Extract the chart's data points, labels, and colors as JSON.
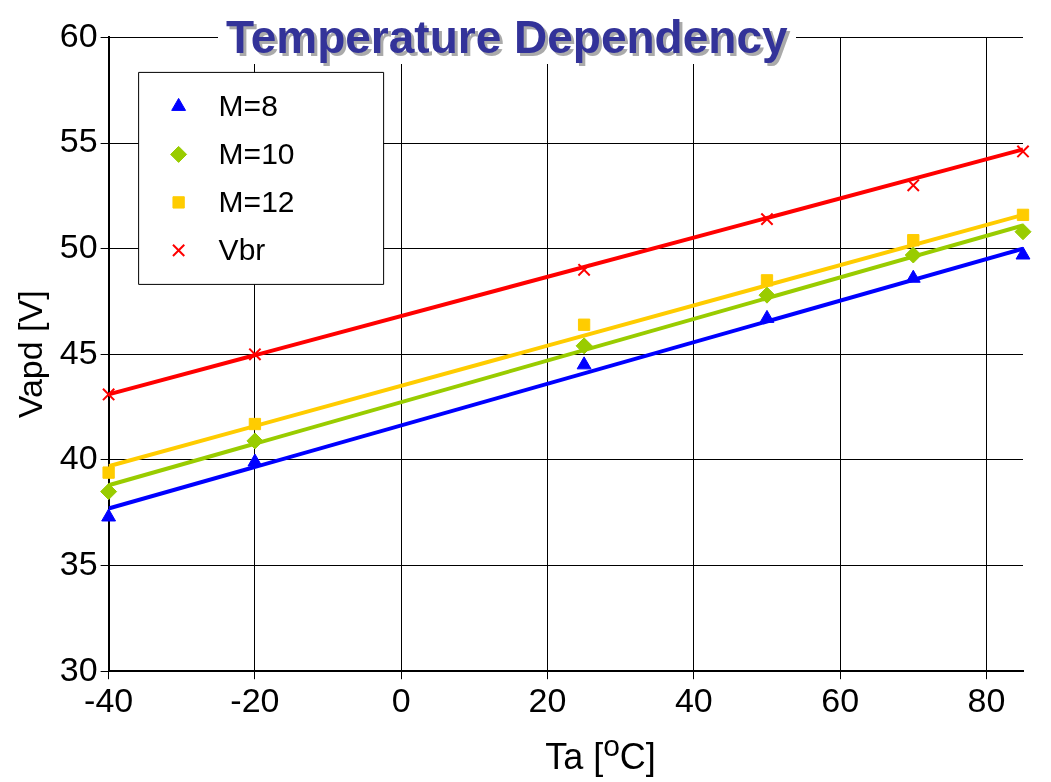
{
  "chart_data": {
    "type": "scatter",
    "title": "Temperature Dependency",
    "xlabel": "Ta [$^{o}$C]",
    "ylabel": "Vapd [V]",
    "xlim": [
      -40,
      85
    ],
    "xticks": [
      -40,
      -20,
      0,
      20,
      40,
      60,
      80
    ],
    "ylim": [
      30,
      60
    ],
    "yticks": [
      30,
      35,
      40,
      45,
      50,
      55,
      60
    ],
    "grid": true,
    "legend": "top left",
    "series": [
      {
        "name": "M=8",
        "color": "#0000ff",
        "marker": "triangle",
        "x": [
          -40,
          -20,
          25,
          50,
          70,
          85
        ],
        "values": [
          37.3,
          39.9,
          44.5,
          46.7,
          48.6,
          49.7
        ]
      },
      {
        "name": "M=10",
        "color": "#99cc00",
        "marker": "diamond",
        "x": [
          -40,
          -20,
          25,
          50,
          70,
          85
        ],
        "values": [
          38.5,
          40.9,
          45.4,
          47.8,
          49.7,
          50.8
        ]
      },
      {
        "name": "M=12",
        "color": "#ffcc00",
        "marker": "square",
        "x": [
          -40,
          -20,
          25,
          50,
          70,
          85
        ],
        "values": [
          39.4,
          41.7,
          46.4,
          48.5,
          50.4,
          51.6
        ]
      },
      {
        "name": "Vbr",
        "color": "#ff0000",
        "marker": "cross",
        "x": [
          -40,
          -20,
          25,
          50,
          70,
          85
        ],
        "values": [
          43.1,
          45.0,
          49.0,
          51.4,
          53.0,
          54.6
        ]
      },
      {
        "type": "line",
        "color": "#0000ff",
        "marker": "none",
        "x": [
          -40,
          85
        ],
        "values": [
          37.7,
          50.0
        ]
      },
      {
        "type": "line",
        "color": "#99cc00",
        "marker": "none",
        "x": [
          -40,
          85
        ],
        "values": [
          38.8,
          51.1
        ]
      },
      {
        "type": "line",
        "color": "#ffcc00",
        "marker": "none",
        "x": [
          -40,
          85
        ],
        "values": [
          39.7,
          51.6
        ]
      },
      {
        "type": "line",
        "color": "#ff0000",
        "marker": "none",
        "x": [
          -40,
          85
        ],
        "values": [
          43.1,
          54.7
        ]
      }
    ]
  }
}
